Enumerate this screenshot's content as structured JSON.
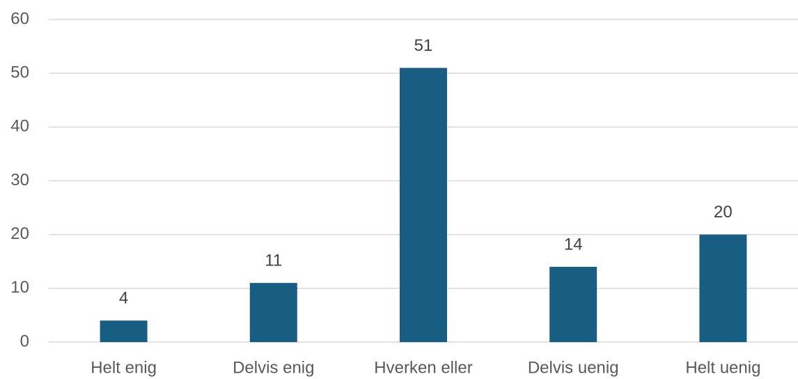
{
  "chart_data": {
    "type": "bar",
    "categories": [
      "Helt enig",
      "Delvis enig",
      "Hverken eller",
      "Delvis uenig",
      "Helt uenig"
    ],
    "values": [
      4,
      11,
      51,
      14,
      20
    ],
    "color": "#175e82",
    "ylim": [
      0,
      60
    ],
    "yticks": [
      0,
      10,
      20,
      30,
      40,
      50,
      60
    ],
    "grid": true,
    "data_labels": true
  }
}
